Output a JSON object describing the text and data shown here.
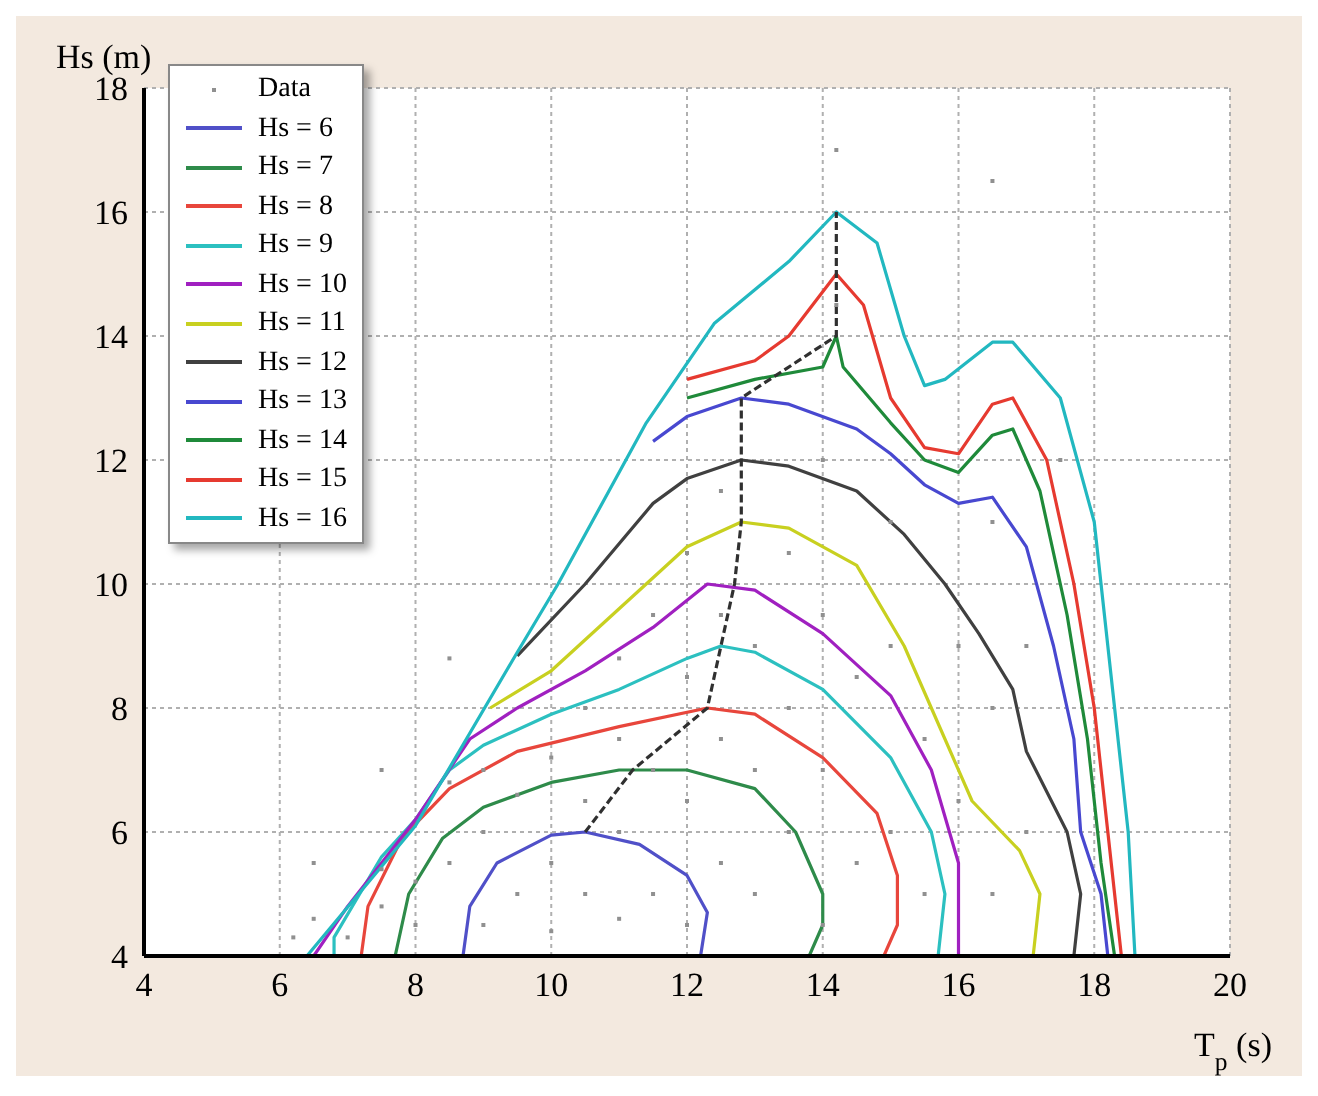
{
  "chart_data": {
    "type": "line",
    "xlabel": "T$_{p}$ (s)",
    "ylabel": "Hs (m)",
    "xlim": [
      4,
      20
    ],
    "ylim": [
      4,
      18
    ],
    "xticks": [
      4,
      6,
      8,
      10,
      12,
      14,
      16,
      18,
      20
    ],
    "yticks": [
      4,
      6,
      8,
      10,
      12,
      14,
      16,
      18
    ],
    "grid": true,
    "legend": "top left",
    "marker": "none",
    "line_style": "solid",
    "series": [
      {
        "name": "Data",
        "type": "scatter",
        "marker": "square",
        "color": "#909090",
        "x": [
          6.2,
          6.5,
          7,
          7.5,
          7.5,
          8,
          8,
          8.5,
          8.5,
          9,
          9,
          9,
          9.5,
          9.5,
          10,
          10,
          10,
          10.5,
          10.5,
          10.5,
          11,
          11,
          11,
          11,
          11.5,
          11.5,
          11.5,
          12,
          12,
          12,
          12,
          12.5,
          12.5,
          12.5,
          12.5,
          13,
          13,
          13,
          13.5,
          13.5,
          13.5,
          14,
          14,
          14,
          14,
          14.2,
          14.5,
          14.5,
          15,
          15,
          15,
          15.5,
          15.5,
          16,
          16,
          16.5,
          16.5,
          16.5,
          16.5,
          17,
          17,
          17.5,
          14.2,
          6.5,
          7.5,
          8.5
        ],
        "values": [
          4.3,
          4.6,
          4.3,
          4.8,
          5.4,
          4.5,
          5.2,
          5.5,
          6.8,
          4.5,
          6,
          7,
          5,
          6.6,
          4.4,
          5.5,
          7.2,
          5,
          6.5,
          8,
          4.6,
          6,
          7.5,
          8.8,
          5,
          7,
          9.5,
          4.5,
          6.5,
          8.5,
          10.5,
          5.5,
          7.5,
          9.5,
          11.5,
          5,
          7,
          9,
          6,
          8,
          10.5,
          4.5,
          7,
          9.5,
          12,
          14.5,
          5.5,
          8.5,
          6,
          9,
          11,
          5,
          7.5,
          6.5,
          9,
          5,
          8,
          11,
          16.5,
          6,
          9,
          12,
          17,
          5.5,
          7,
          8.8
        ]
      },
      {
        "name": "Hs = 6",
        "color": "#5050c8",
        "x": [
          8.7,
          8.8,
          9.2,
          10,
          10.5,
          11.3,
          12,
          12.3,
          12.2
        ],
        "values": [
          4,
          4.8,
          5.5,
          5.95,
          6,
          5.8,
          5.3,
          4.7,
          4
        ]
      },
      {
        "name": "Hs = 7",
        "color": "#2e8b4a",
        "x": [
          7.7,
          7.9,
          8.4,
          9,
          10,
          11,
          12,
          13,
          13.6,
          14,
          14,
          13.8
        ],
        "values": [
          4,
          5,
          5.9,
          6.4,
          6.8,
          7,
          7,
          6.7,
          6,
          5,
          4.5,
          4
        ]
      },
      {
        "name": "Hs = 8",
        "color": "#e8463c",
        "x": [
          7.2,
          7.3,
          7.8,
          8.5,
          9.5,
          11,
          12.3,
          13,
          14,
          14.8,
          15.1,
          15.1,
          14.9
        ],
        "values": [
          4,
          4.8,
          5.9,
          6.7,
          7.3,
          7.7,
          8,
          7.9,
          7.2,
          6.3,
          5.3,
          4.5,
          4
        ]
      },
      {
        "name": "Hs = 9",
        "color": "#2cc0c0",
        "x": [
          6.8,
          6.8,
          7.5,
          8,
          8.5,
          9,
          10,
          11,
          12,
          12.5,
          13,
          14,
          15,
          15.6,
          15.8,
          15.7
        ],
        "values": [
          4,
          4.3,
          5.6,
          6.2,
          7,
          7.4,
          7.9,
          8.3,
          8.8,
          9,
          8.9,
          8.3,
          7.2,
          6,
          5,
          4
        ]
      },
      {
        "name": "Hs = 10",
        "color": "#a020c0",
        "x": [
          6.5,
          7,
          8,
          8.8,
          9.5,
          10.5,
          11.5,
          12.3,
          13,
          14,
          15,
          15.6,
          16,
          16
        ],
        "values": [
          4,
          4.8,
          6.2,
          7.5,
          8,
          8.6,
          9.3,
          10,
          9.9,
          9.2,
          8.2,
          7,
          5.5,
          4
        ]
      },
      {
        "name": "Hs = 11",
        "color": "#c8d020",
        "x": [
          9.1,
          10,
          11,
          12,
          12.8,
          13.5,
          14.5,
          15.2,
          15.8,
          16.2,
          16.9,
          17.2,
          17.1
        ],
        "values": [
          8,
          8.6,
          9.6,
          10.6,
          11,
          10.9,
          10.3,
          9,
          7.5,
          6.5,
          5.7,
          5,
          4
        ]
      },
      {
        "name": "Hs = 12",
        "color": "#404040",
        "x": [
          9.5,
          10.5,
          11.5,
          12,
          12.8,
          13.5,
          14.5,
          15.2,
          15.8,
          16.3,
          16.8,
          17,
          17.6,
          17.8,
          17.7
        ],
        "values": [
          8.84,
          10,
          11.3,
          11.7,
          12,
          11.9,
          11.5,
          10.8,
          10,
          9.2,
          8.3,
          7.3,
          6,
          5,
          4
        ]
      },
      {
        "name": "Hs = 13",
        "color": "#4848d0",
        "x": [
          11.5,
          12,
          12.8,
          13.5,
          14.5,
          15,
          15.5,
          16,
          16.5,
          17,
          17.4,
          17.7,
          17.8,
          18.1,
          18.2
        ],
        "values": [
          12.3,
          12.7,
          13,
          12.9,
          12.5,
          12.1,
          11.6,
          11.3,
          11.4,
          10.6,
          9,
          7.5,
          6,
          5,
          4
        ]
      },
      {
        "name": "Hs = 14",
        "color": "#1f8a3a",
        "x": [
          12,
          13,
          14,
          14.2,
          14.3,
          15,
          15.5,
          16,
          16.5,
          16.8,
          17.2,
          17.6,
          17.9,
          18.1,
          18.3
        ],
        "values": [
          13,
          13.3,
          13.5,
          14,
          13.5,
          12.6,
          12,
          11.8,
          12.4,
          12.5,
          11.5,
          9.5,
          7.5,
          5.5,
          4
        ]
      },
      {
        "name": "Hs = 15",
        "color": "#e63a30",
        "x": [
          12,
          13,
          13.5,
          14.2,
          14.6,
          15,
          15.5,
          16,
          16.5,
          16.8,
          17.3,
          17.7,
          18,
          18.2,
          18.4
        ],
        "values": [
          13.3,
          13.6,
          14,
          15,
          14.5,
          13,
          12.2,
          12.1,
          12.9,
          13,
          12,
          10,
          8,
          6,
          4
        ]
      },
      {
        "name": "Hs = 16",
        "color": "#22b8c0",
        "x": [
          6.4,
          8,
          9.5,
          10.1,
          11.4,
          12.4,
          13.5,
          14.2,
          14.8,
          15.2,
          15.5,
          15.8,
          16.5,
          16.8,
          17.5,
          18,
          18.3,
          18.5,
          18.6
        ],
        "values": [
          4,
          6.1,
          8.9,
          10,
          12.6,
          14.2,
          15.2,
          16,
          15.5,
          14,
          13.2,
          13.3,
          13.9,
          13.9,
          13,
          11,
          8,
          6,
          4
        ]
      },
      {
        "type": "line",
        "line_style": "dashed",
        "color": "#303030",
        "x": [
          10.5,
          11.2,
          12.3,
          12.5,
          12.7,
          12.8,
          12.8,
          12.8,
          14.2,
          14.2,
          14.2
        ],
        "values": [
          6,
          7,
          8,
          9,
          10,
          11,
          12,
          13,
          14,
          15,
          16
        ]
      }
    ]
  }
}
